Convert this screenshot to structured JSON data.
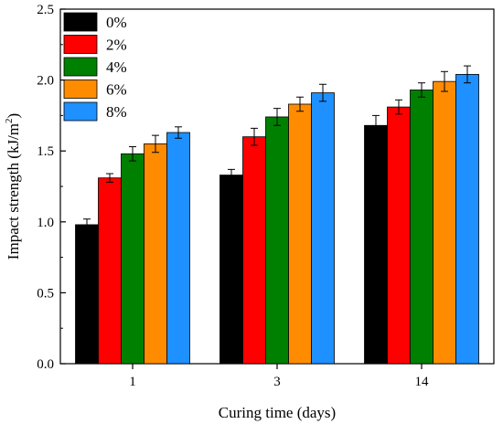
{
  "chart_data": {
    "type": "bar",
    "xlabel": "Curing time (days)",
    "ylabel_main": "Impact strength (kJ/m",
    "ylabel_sup": "2",
    "ylabel_close": ")",
    "categories": [
      "1",
      "3",
      "14"
    ],
    "ylim": [
      0.0,
      2.5
    ],
    "yticks": [
      0.0,
      0.5,
      1.0,
      1.5,
      2.0,
      2.5
    ],
    "ytick_labels": [
      "0.0",
      "0.5",
      "1.0",
      "1.5",
      "2.0",
      "2.5"
    ],
    "error_bars": true,
    "legend_position": "top-left",
    "grid": false,
    "series": [
      {
        "name": "0%",
        "color": "#000000",
        "values": [
          0.98,
          1.33,
          1.68
        ],
        "errors": [
          0.04,
          0.04,
          0.07
        ]
      },
      {
        "name": "2%",
        "color": "#ff0000",
        "values": [
          1.31,
          1.6,
          1.81
        ],
        "errors": [
          0.03,
          0.06,
          0.05
        ]
      },
      {
        "name": "4%",
        "color": "#008000",
        "values": [
          1.48,
          1.74,
          1.93
        ],
        "errors": [
          0.05,
          0.06,
          0.05
        ]
      },
      {
        "name": "6%",
        "color": "#ff8c00",
        "values": [
          1.55,
          1.83,
          1.99
        ],
        "errors": [
          0.06,
          0.05,
          0.07
        ]
      },
      {
        "name": "8%",
        "color": "#1e90ff",
        "values": [
          1.63,
          1.91,
          2.04
        ],
        "errors": [
          0.04,
          0.06,
          0.06
        ]
      }
    ]
  }
}
